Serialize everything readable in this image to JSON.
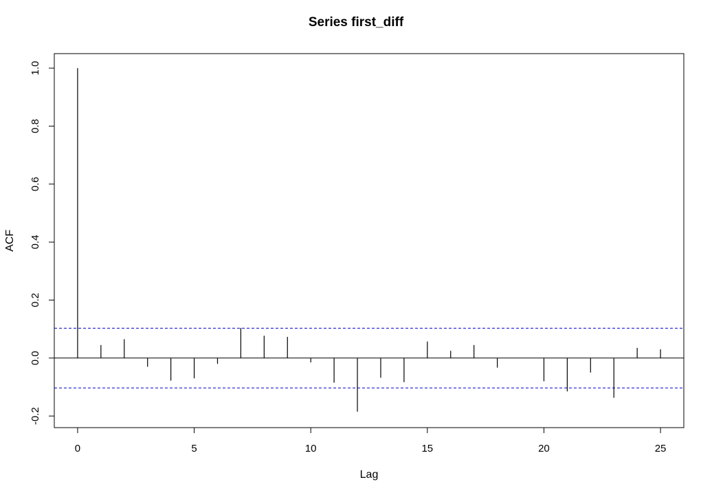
{
  "chart_data": {
    "type": "bar",
    "title": "Series  first_diff",
    "xlabel": "Lag",
    "ylabel": "ACF",
    "xlim": [
      -1,
      26
    ],
    "ylim": [
      -0.24,
      1.05
    ],
    "x_ticks": [
      {
        "value": 0,
        "label": "0"
      },
      {
        "value": 5,
        "label": "5"
      },
      {
        "value": 10,
        "label": "10"
      },
      {
        "value": 15,
        "label": "15"
      },
      {
        "value": 20,
        "label": "20"
      },
      {
        "value": 25,
        "label": "25"
      }
    ],
    "y_ticks": [
      {
        "value": -0.2,
        "label": "-0.2"
      },
      {
        "value": 0.0,
        "label": "0.0"
      },
      {
        "value": 0.2,
        "label": "0.2"
      },
      {
        "value": 0.4,
        "label": "0.4"
      },
      {
        "value": 0.6,
        "label": "0.6"
      },
      {
        "value": 0.8,
        "label": "0.8"
      },
      {
        "value": 1.0,
        "label": "1.0"
      }
    ],
    "lags": [
      0,
      1,
      2,
      3,
      4,
      5,
      6,
      7,
      8,
      9,
      10,
      11,
      12,
      13,
      14,
      15,
      16,
      17,
      18,
      19,
      20,
      21,
      22,
      23,
      24,
      25
    ],
    "values": [
      1.0,
      0.045,
      0.065,
      -0.03,
      -0.078,
      -0.07,
      -0.02,
      0.104,
      0.077,
      0.073,
      -0.015,
      -0.085,
      -0.185,
      -0.068,
      -0.083,
      0.057,
      0.025,
      0.045,
      -0.033,
      0.0,
      -0.08,
      -0.115,
      -0.05,
      -0.137,
      0.035,
      0.03
    ],
    "confidence_bounds": [
      0.103,
      -0.103
    ],
    "bound_color": "#0000cc",
    "grid": false
  }
}
